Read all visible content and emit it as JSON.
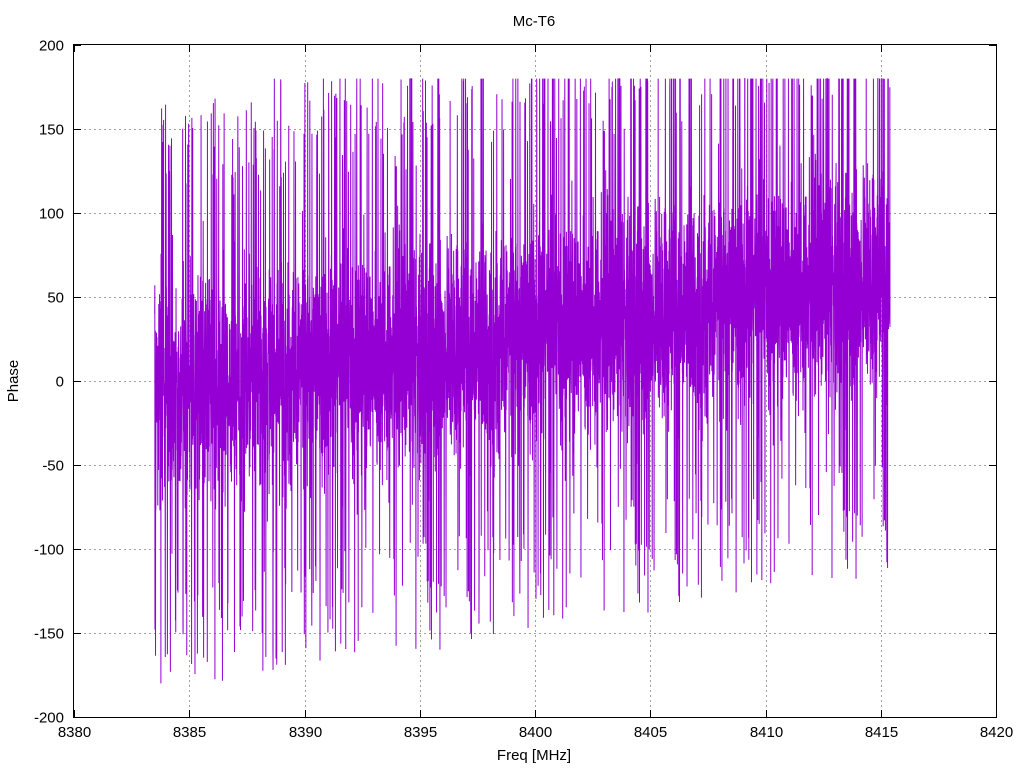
{
  "chart_data": {
    "type": "line",
    "title": "Mc-T6",
    "xlabel": "Freq [MHz]",
    "ylabel": "Phase",
    "xlim": [
      8380,
      8420
    ],
    "ylim": [
      -200,
      200
    ],
    "xticks": [
      8380,
      8385,
      8390,
      8395,
      8400,
      8405,
      8410,
      8415,
      8420
    ],
    "yticks": [
      -200,
      -150,
      -100,
      -50,
      0,
      50,
      100,
      150,
      200
    ],
    "grid": true,
    "series_color": "#9400d3",
    "series": [
      {
        "x": [
          8383.5,
          8384.0,
          8384.5,
          8385.0,
          8385.5,
          8386.0,
          8386.5,
          8387.0,
          8387.5,
          8388.0,
          8388.5,
          8389.0,
          8389.5,
          8390.0,
          8390.5,
          8391.0,
          8391.5,
          8392.0,
          8392.5,
          8393.0,
          8393.5,
          8394.0,
          8394.5,
          8395.0,
          8395.5,
          8396.0,
          8396.5,
          8397.0,
          8397.5,
          8398.0,
          8398.5,
          8399.0,
          8399.5,
          8400.0,
          8400.5,
          8401.0,
          8401.5,
          8402.0,
          8402.5,
          8403.0,
          8403.5,
          8404.0,
          8404.5,
          8405.0,
          8405.5,
          8406.0,
          8406.5,
          8407.0,
          8407.5,
          8408.0,
          8408.5,
          8409.0,
          8409.5,
          8410.0,
          8410.5,
          8411.0,
          8411.5,
          8412.0,
          8412.5,
          8413.0,
          8413.5,
          8414.0,
          8414.5,
          8415.0,
          8415.4
        ],
        "y": [
          -5,
          -8,
          -6,
          -4,
          -3,
          -2,
          0,
          1,
          2,
          3,
          4,
          5,
          6,
          7,
          8,
          9,
          10,
          11,
          12,
          13,
          14,
          15,
          16,
          17,
          18,
          19,
          20,
          21,
          22,
          23,
          25,
          26,
          27,
          29,
          30,
          31,
          32,
          34,
          35,
          36,
          37,
          39,
          40,
          41,
          42,
          43,
          44,
          45,
          46,
          47,
          48,
          50,
          51,
          52,
          53,
          54,
          55,
          57,
          58,
          59,
          60,
          61,
          62,
          63,
          64
        ]
      }
    ]
  }
}
